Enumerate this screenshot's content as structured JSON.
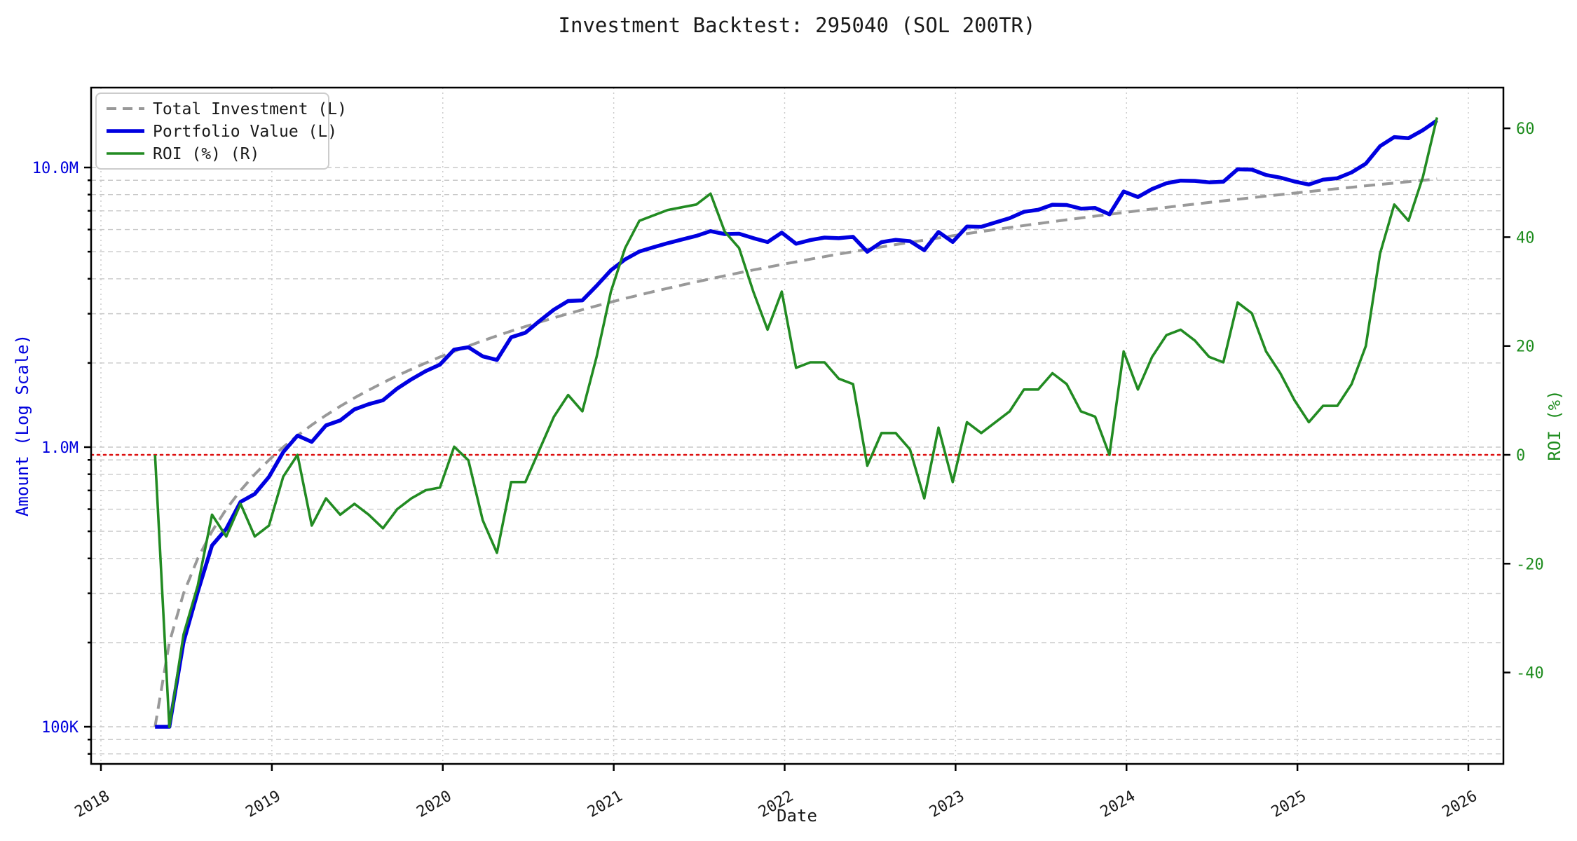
{
  "title": "Investment Backtest: 295040 (SOL 200TR)",
  "colors": {
    "investment": "#999999",
    "portfolio": "#0000e0",
    "roi": "#228b22",
    "zero_line": "#dd1111",
    "grid": "#c9c9c9",
    "spine": "#000000",
    "left_axis_text": "#0000dd",
    "right_axis_text": "#1e8c1e",
    "legend_border": "#cccccc",
    "legend_bg": "#ffffff"
  },
  "legend": {
    "position": "upper left",
    "items": [
      {
        "label": "Total Investment (L)",
        "swatch": "dashed-gray-line"
      },
      {
        "label": "Portfolio Value (L)",
        "swatch": "solid-blue-line"
      },
      {
        "label": "ROI (%) (R)",
        "swatch": "solid-green-line"
      }
    ]
  },
  "chart_data": {
    "type": "line",
    "title": "Investment Backtest: 295040 (SOL 200TR)",
    "xlabel": "Date",
    "ylabel_left": "Amount (Log Scale)",
    "ylabel_right": "ROI (%)",
    "x_tick_labels": [
      "2018",
      "2019",
      "2020",
      "2021",
      "2022",
      "2023",
      "2024",
      "2025",
      "2026"
    ],
    "y_left_scale": "log",
    "y_left_ticks": [
      {
        "label": "10.0M",
        "value_millions": 10
      },
      {
        "label": "1.0M",
        "value_millions": 1
      },
      {
        "label": "100K",
        "value_millions": 0.1
      }
    ],
    "y_right_ticks": [
      {
        "label": "60",
        "value_pct": 60
      },
      {
        "label": "40",
        "value_pct": 40
      },
      {
        "label": "20",
        "value_pct": 20
      },
      {
        "label": "0",
        "value_pct": 0
      },
      {
        "label": "-20",
        "value_pct": -20
      },
      {
        "label": "-40",
        "value_pct": -40
      }
    ],
    "x_range_years": [
      2017.94,
      2026.21
    ],
    "y_left_range_millions": [
      0.0736,
      19.3
    ],
    "y_right_range_pct": [
      -56.8,
      67.5
    ],
    "zero_roi_reference_line_pct": 0,
    "grid": true,
    "months": [
      "2018-04",
      "2018-05",
      "2018-06",
      "2018-07",
      "2018-08",
      "2018-09",
      "2018-10",
      "2018-11",
      "2018-12",
      "2019-01",
      "2019-02",
      "2019-03",
      "2019-04",
      "2019-05",
      "2019-06",
      "2019-07",
      "2019-08",
      "2019-09",
      "2019-10",
      "2019-11",
      "2019-12",
      "2020-01",
      "2020-02",
      "2020-03",
      "2020-04",
      "2020-05",
      "2020-06",
      "2020-07",
      "2020-08",
      "2020-09",
      "2020-10",
      "2020-11",
      "2020-12",
      "2021-01",
      "2021-02",
      "2021-03",
      "2021-04",
      "2021-05",
      "2021-06",
      "2021-07",
      "2021-08",
      "2021-09",
      "2021-10",
      "2021-11",
      "2021-12",
      "2022-01",
      "2022-02",
      "2022-03",
      "2022-04",
      "2022-05",
      "2022-06",
      "2022-07",
      "2022-08",
      "2022-09",
      "2022-10",
      "2022-11",
      "2022-12",
      "2023-01",
      "2023-02",
      "2023-03",
      "2023-04",
      "2023-05",
      "2023-06",
      "2023-07",
      "2023-08",
      "2023-09",
      "2023-10",
      "2023-11",
      "2023-12",
      "2024-01",
      "2024-02",
      "2024-03",
      "2024-04",
      "2024-05",
      "2024-06",
      "2024-07",
      "2024-08",
      "2024-09",
      "2024-10",
      "2024-11",
      "2024-12",
      "2025-01",
      "2025-02",
      "2025-03",
      "2025-04",
      "2025-05",
      "2025-06",
      "2025-07",
      "2025-08",
      "2025-09",
      "2025-10"
    ],
    "series": [
      {
        "name": "Total Investment (L)",
        "axis": "left",
        "style": "dashed",
        "color": "#999999",
        "values_millions": [
          0.1,
          0.2,
          0.3,
          0.4,
          0.5,
          0.6,
          0.7,
          0.8,
          0.9,
          1.0,
          1.1,
          1.2,
          1.3,
          1.4,
          1.5,
          1.6,
          1.7,
          1.8,
          1.9,
          2.0,
          2.1,
          2.2,
          2.3,
          2.4,
          2.5,
          2.6,
          2.7,
          2.8,
          2.9,
          3.0,
          3.1,
          3.2,
          3.3,
          3.4,
          3.5,
          3.6,
          3.7,
          3.8,
          3.9,
          4.0,
          4.1,
          4.2,
          4.3,
          4.4,
          4.5,
          4.6,
          4.7,
          4.8,
          4.9,
          5.0,
          5.1,
          5.2,
          5.3,
          5.4,
          5.5,
          5.6,
          5.7,
          5.8,
          5.9,
          6.0,
          6.1,
          6.2,
          6.3,
          6.4,
          6.5,
          6.6,
          6.7,
          6.8,
          6.9,
          7.0,
          7.1,
          7.2,
          7.3,
          7.4,
          7.5,
          7.6,
          7.7,
          7.8,
          7.9,
          8.0,
          8.1,
          8.2,
          8.3,
          8.4,
          8.5,
          8.6,
          8.7,
          8.8,
          8.9,
          9.0,
          9.1
        ]
      },
      {
        "name": "Portfolio Value (L)",
        "axis": "left",
        "style": "solid",
        "color": "#0000e0",
        "values_millions": [
          0.1,
          0.1,
          0.201,
          0.304,
          0.445,
          0.51,
          0.637,
          0.68,
          0.783,
          0.96,
          1.1,
          1.044,
          1.196,
          1.246,
          1.365,
          1.424,
          1.471,
          1.62,
          1.748,
          1.87,
          1.974,
          2.233,
          2.277,
          2.112,
          2.05,
          2.47,
          2.565,
          2.828,
          3.103,
          3.33,
          3.348,
          3.776,
          4.29,
          4.692,
          5.005,
          5.184,
          5.365,
          5.529,
          5.694,
          5.92,
          5.781,
          5.796,
          5.59,
          5.412,
          5.85,
          5.336,
          5.499,
          5.616,
          5.586,
          5.65,
          4.998,
          5.408,
          5.512,
          5.454,
          5.06,
          5.88,
          5.415,
          6.148,
          6.136,
          6.36,
          6.588,
          6.944,
          7.056,
          7.36,
          7.345,
          7.128,
          7.169,
          6.8,
          8.211,
          7.84,
          8.378,
          8.784,
          8.979,
          8.954,
          8.85,
          8.892,
          9.856,
          9.828,
          9.401,
          9.2,
          8.91,
          8.692,
          9.047,
          9.156,
          9.605,
          10.32,
          11.919,
          12.848,
          12.727,
          13.59,
          14.742
        ]
      },
      {
        "name": "ROI (%) (R)",
        "axis": "right",
        "style": "solid",
        "color": "#228b22",
        "values_pct": [
          0,
          -50,
          -33,
          -24,
          -11,
          -15,
          -9,
          -15,
          -13,
          -4,
          0,
          -13,
          -8,
          -11,
          -9,
          -11,
          -13.5,
          -10,
          -8,
          -6.5,
          -6,
          1.5,
          -1,
          -12,
          -18,
          -5,
          -5,
          1,
          7,
          11,
          8,
          18,
          30,
          38,
          43,
          44,
          45,
          45.5,
          46,
          48,
          41,
          38,
          30,
          23,
          30,
          16,
          17,
          17,
          14,
          13,
          -2,
          4,
          4,
          1,
          -8,
          5,
          -5,
          6,
          4,
          6,
          8,
          12,
          12,
          15,
          13,
          8,
          7,
          0,
          19,
          12,
          18,
          22,
          23,
          21,
          18,
          17,
          28,
          26,
          19,
          15,
          10,
          6,
          9,
          9,
          13,
          20,
          37,
          46,
          43,
          51,
          62
        ]
      }
    ]
  }
}
